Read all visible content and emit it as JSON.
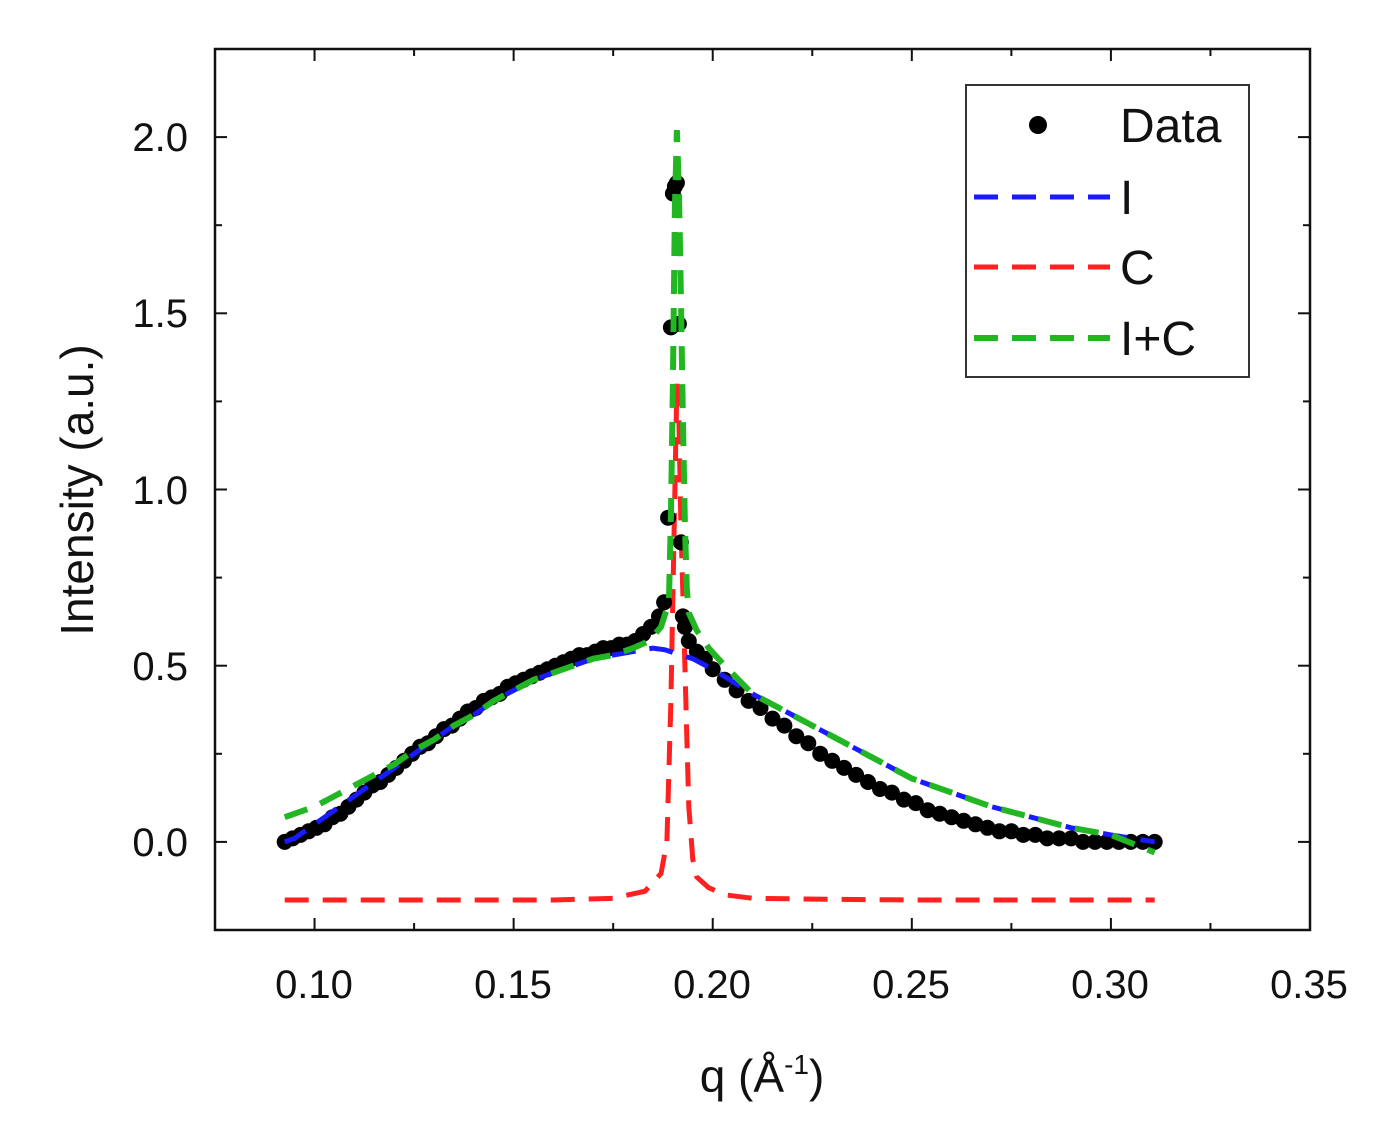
{
  "chart_data": {
    "type": "line",
    "title": "",
    "xlabel": {
      "base": "q (Å",
      "sup": "-1",
      "end": ")"
    },
    "ylabel": "Intensity (a.u.)",
    "xlim": [
      0.075,
      0.35
    ],
    "ylim": [
      -0.25,
      2.25
    ],
    "xticks": [
      0.1,
      0.15,
      0.2,
      0.25,
      0.3,
      0.35
    ],
    "xtick_labels": [
      "0.10",
      "0.15",
      "0.20",
      "0.25",
      "0.30",
      "0.35"
    ],
    "yticks": [
      0.0,
      0.5,
      1.0,
      1.5,
      2.0
    ],
    "ytick_labels": [
      "0.0",
      "0.5",
      "1.0",
      "1.5",
      "2.0"
    ],
    "grid": false,
    "legend_position": "top-right",
    "colors": {
      "data": "#000000",
      "I": "#1a1aff",
      "C": "#ff2020",
      "IC": "#22b722",
      "axis": "#111111"
    },
    "series": [
      {
        "name": "Data",
        "kind": "scatter",
        "x": [
          0.0925,
          0.0945,
          0.0965,
          0.0985,
          0.1005,
          0.1025,
          0.1045,
          0.1065,
          0.1085,
          0.1105,
          0.1125,
          0.1145,
          0.1165,
          0.1185,
          0.1205,
          0.1225,
          0.1245,
          0.1265,
          0.1285,
          0.1305,
          0.1325,
          0.1345,
          0.1365,
          0.1385,
          0.1405,
          0.1425,
          0.1445,
          0.1465,
          0.1485,
          0.1505,
          0.1525,
          0.1545,
          0.1565,
          0.1585,
          0.1605,
          0.1625,
          0.1645,
          0.1665,
          0.1685,
          0.1705,
          0.1725,
          0.1745,
          0.1765,
          0.1785,
          0.1805,
          0.1825,
          0.1845,
          0.1865,
          0.1878,
          0.1888,
          0.1895,
          0.19,
          0.1905,
          0.191,
          0.1915,
          0.192,
          0.1925,
          0.193,
          0.194,
          0.196,
          0.198,
          0.2,
          0.203,
          0.206,
          0.209,
          0.212,
          0.215,
          0.218,
          0.221,
          0.224,
          0.227,
          0.23,
          0.233,
          0.236,
          0.239,
          0.242,
          0.245,
          0.248,
          0.251,
          0.254,
          0.257,
          0.26,
          0.263,
          0.266,
          0.269,
          0.272,
          0.275,
          0.278,
          0.281,
          0.284,
          0.287,
          0.29,
          0.293,
          0.296,
          0.299,
          0.302,
          0.305,
          0.308,
          0.311
        ],
        "y": [
          0.0,
          0.01,
          0.02,
          0.03,
          0.04,
          0.05,
          0.07,
          0.08,
          0.1,
          0.12,
          0.14,
          0.16,
          0.17,
          0.19,
          0.21,
          0.23,
          0.25,
          0.27,
          0.28,
          0.3,
          0.32,
          0.33,
          0.35,
          0.37,
          0.38,
          0.4,
          0.41,
          0.42,
          0.44,
          0.45,
          0.46,
          0.47,
          0.48,
          0.49,
          0.5,
          0.51,
          0.52,
          0.53,
          0.53,
          0.54,
          0.55,
          0.55,
          0.56,
          0.56,
          0.57,
          0.59,
          0.61,
          0.64,
          0.68,
          0.92,
          1.46,
          1.84,
          1.86,
          1.87,
          1.47,
          0.85,
          0.64,
          0.61,
          0.57,
          0.54,
          0.52,
          0.49,
          0.46,
          0.43,
          0.4,
          0.38,
          0.35,
          0.33,
          0.3,
          0.28,
          0.25,
          0.23,
          0.21,
          0.19,
          0.17,
          0.15,
          0.14,
          0.12,
          0.11,
          0.09,
          0.08,
          0.07,
          0.06,
          0.05,
          0.04,
          0.03,
          0.03,
          0.02,
          0.02,
          0.01,
          0.01,
          0.01,
          0.0,
          0.0,
          0.0,
          0.0,
          0.0,
          0.0,
          0.0
        ]
      },
      {
        "name": "I",
        "kind": "line",
        "x": [
          0.0925,
          0.095,
          0.1,
          0.105,
          0.11,
          0.115,
          0.12,
          0.125,
          0.13,
          0.135,
          0.14,
          0.145,
          0.15,
          0.155,
          0.16,
          0.165,
          0.17,
          0.175,
          0.18,
          0.185,
          0.188,
          0.192,
          0.195,
          0.2,
          0.21,
          0.22,
          0.23,
          0.24,
          0.25,
          0.26,
          0.27,
          0.28,
          0.29,
          0.3,
          0.311
        ],
        "y": [
          0.0,
          0.01,
          0.05,
          0.09,
          0.13,
          0.17,
          0.21,
          0.25,
          0.29,
          0.33,
          0.36,
          0.4,
          0.43,
          0.46,
          0.48,
          0.5,
          0.52,
          0.53,
          0.54,
          0.55,
          0.545,
          0.53,
          0.52,
          0.49,
          0.42,
          0.36,
          0.3,
          0.24,
          0.18,
          0.14,
          0.1,
          0.07,
          0.04,
          0.02,
          0.0
        ]
      },
      {
        "name": "C",
        "kind": "line",
        "x": [
          0.0925,
          0.1,
          0.12,
          0.14,
          0.16,
          0.175,
          0.183,
          0.187,
          0.1885,
          0.1895,
          0.1905,
          0.191,
          0.1915,
          0.192,
          0.1925,
          0.193,
          0.1935,
          0.194,
          0.195,
          0.196,
          0.199,
          0.203,
          0.21,
          0.23,
          0.25,
          0.27,
          0.29,
          0.311
        ],
        "y": [
          -0.165,
          -0.165,
          -0.165,
          -0.165,
          -0.165,
          -0.16,
          -0.14,
          -0.09,
          0.0,
          0.4,
          1.0,
          1.3,
          1.2,
          0.9,
          0.7,
          0.5,
          0.3,
          0.1,
          -0.05,
          -0.1,
          -0.13,
          -0.15,
          -0.16,
          -0.163,
          -0.165,
          -0.165,
          -0.165,
          -0.165
        ]
      },
      {
        "name": "I+C",
        "kind": "line",
        "x": [
          0.0925,
          0.095,
          0.1,
          0.105,
          0.11,
          0.115,
          0.12,
          0.125,
          0.13,
          0.135,
          0.14,
          0.145,
          0.15,
          0.155,
          0.16,
          0.165,
          0.17,
          0.175,
          0.18,
          0.184,
          0.187,
          0.189,
          0.1895,
          0.19,
          0.1905,
          0.191,
          0.1915,
          0.192,
          0.1925,
          0.193,
          0.1935,
          0.194,
          0.196,
          0.199,
          0.203,
          0.21,
          0.22,
          0.23,
          0.24,
          0.25,
          0.26,
          0.27,
          0.28,
          0.29,
          0.3,
          0.311
        ],
        "y": [
          0.07,
          0.08,
          0.1,
          0.13,
          0.16,
          0.19,
          0.22,
          0.26,
          0.29,
          0.33,
          0.36,
          0.4,
          0.43,
          0.46,
          0.48,
          0.5,
          0.52,
          0.53,
          0.55,
          0.57,
          0.61,
          0.68,
          0.92,
          1.3,
          1.8,
          2.02,
          1.85,
          1.55,
          1.2,
          0.9,
          0.72,
          0.65,
          0.6,
          0.55,
          0.5,
          0.42,
          0.36,
          0.3,
          0.24,
          0.18,
          0.14,
          0.1,
          0.07,
          0.04,
          0.02,
          -0.03
        ]
      }
    ]
  },
  "legend": {
    "items": [
      {
        "key": "data",
        "label": "Data"
      },
      {
        "key": "I",
        "label": "I"
      },
      {
        "key": "C",
        "label": "C"
      },
      {
        "key": "IC",
        "label": "I+C"
      }
    ]
  }
}
